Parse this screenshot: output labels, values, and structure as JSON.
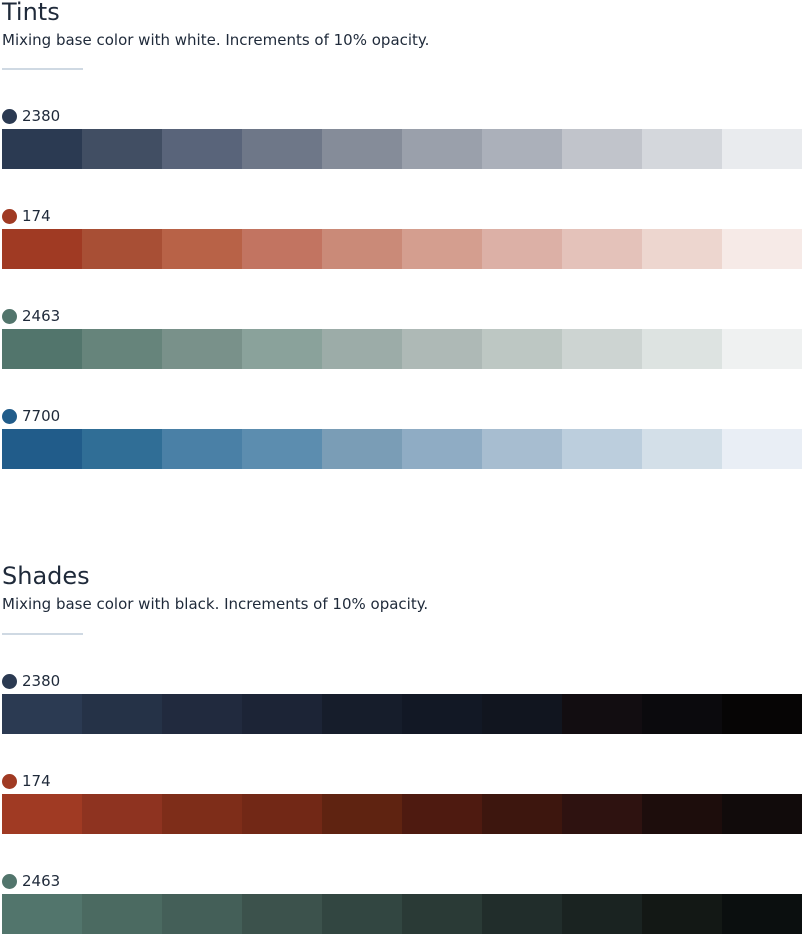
{
  "tints": {
    "title": "Tints",
    "description": "Mixing base color with white. Increments of 10% opacity.",
    "groups": [
      {
        "label": "2380",
        "base": "#2b3a52",
        "colors": [
          "#2b3a52",
          "#414e63",
          "#59647a",
          "#6e7788",
          "#858c99",
          "#9aa0ab",
          "#abb0ba",
          "#c1c4cb",
          "#d4d7dc",
          "#e9ebee"
        ]
      },
      {
        "label": "174",
        "base": "#a03a23",
        "colors": [
          "#a03a23",
          "#a84f35",
          "#b86247",
          "#c27461",
          "#ca8a78",
          "#d49e8f",
          "#dcb0a6",
          "#e4c2ba",
          "#edd6cf",
          "#f6eae7"
        ]
      },
      {
        "label": "2463",
        "base": "#52756c",
        "colors": [
          "#52756c",
          "#66847b",
          "#79918a",
          "#8aa29b",
          "#9caca8",
          "#aeb9b6",
          "#bdc7c3",
          "#cdd4d2",
          "#dde3e1",
          "#eff1f1"
        ]
      },
      {
        "label": "7700",
        "base": "#215c8a",
        "colors": [
          "#215c8a",
          "#306e96",
          "#4a80a6",
          "#5c8daf",
          "#7a9db6",
          "#8facc4",
          "#a7bdd0",
          "#bccedd",
          "#d3dfe8",
          "#e9eef5"
        ]
      }
    ]
  },
  "shades": {
    "title": "Shades",
    "description": "Mixing base color with black. Increments of 10% opacity.",
    "groups": [
      {
        "label": "2380",
        "base": "#2b3a52",
        "colors": [
          "#2b3a52",
          "#253247",
          "#212a3e",
          "#1c2436",
          "#161d2b",
          "#121825",
          "#11151f",
          "#120d11",
          "#0b0a0d",
          "#060505"
        ]
      },
      {
        "label": "174",
        "base": "#a03a23",
        "colors": [
          "#a03a23",
          "#8e3320",
          "#7e2d19",
          "#722816",
          "#5f2311",
          "#4e1a10",
          "#3d160e",
          "#2e1210",
          "#1d0d0c",
          "#110b0b"
        ]
      },
      {
        "label": "2463",
        "base": "#52756c",
        "colors": [
          "#52756c",
          "#4b6a61",
          "#445f58",
          "#3c524c",
          "#324641",
          "#2a3a36",
          "#212d2b",
          "#1a2321",
          "#131815",
          "#0b0f0f"
        ]
      }
    ]
  }
}
